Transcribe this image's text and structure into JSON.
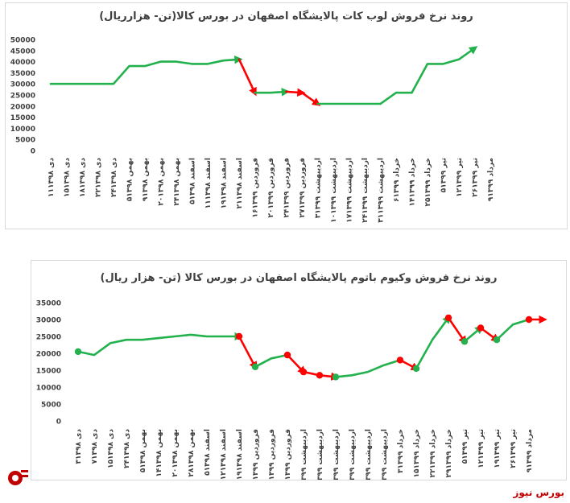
{
  "source_label": "بورس نیوز",
  "colors": {
    "up": "#22b14c",
    "down": "#ff0000",
    "axis_text": "#404040",
    "logo": "#c00000"
  },
  "chart_data": [
    {
      "type": "line",
      "title": "روند نرخ فروش لوب کات پالایشگاه اصفهان در بورس کالا(تن- هزارریال)",
      "ylim": [
        0,
        50000
      ],
      "yticks": [
        0,
        5000,
        10000,
        15000,
        20000,
        25000,
        30000,
        35000,
        40000,
        45000,
        50000
      ],
      "yticklabels": [
        "0",
        "5000",
        "10000",
        "15000",
        "20000",
        "25000",
        "30000",
        "35000",
        "40000",
        "45000",
        "50000"
      ],
      "grid": false,
      "categories": [
        "۱۱دی ۱۳۹۸",
        "۱۵دی ۱۳۹۸",
        "۱۸دی ۱۳۹۸",
        "۲۲دی ۱۳۹۸",
        "۲۴دی ۱۳۹۸",
        "۵بهمن ۱۳۹۸",
        "۹بهمن ۱۳۹۸",
        "۲۰بهمن ۱۳۹۸",
        "۲۴بهمن ۱۳۹۸",
        "۵اسفند ۱۳۹۸",
        "۱۱اسفند ۱۳۹۸",
        "۱۹اسفند ۱۳۹۸",
        "۲۱اسفند ۱۳۹۸",
        "۱۶فروردین ۱۳۹۹",
        "۲۰فروردین ۱۳۹۹",
        "۲۴فروردین ۱۳۹۹",
        "۲۷فروردین ۱۳۹۹",
        "۳اردیبهشت ۱۳۹۹",
        "۱۰اردیبهشت ۱۳۹۹",
        "۱۷اردیبهشت ۱۳۹۹",
        "۲۴اردیبهشت ۱۳۹۹",
        "۳۱اردیبهشت ۱۳۹۹",
        "۶خرداد ۱۳۹۹",
        "۱۴خرداد ۱۳۹۹",
        "۲۵خرداد ۱۳۹۹",
        "۵تیر ۱۳۹۹",
        "۱۲تیر ۱۳۹۹",
        "۲۶تیر ۱۳۹۹",
        "۹مرداد ۱۳۹۹"
      ],
      "values": [
        30000,
        30000,
        30000,
        30000,
        30000,
        38000,
        38000,
        40000,
        40000,
        39000,
        39000,
        40500,
        41000,
        26000,
        26000,
        26500,
        26000,
        21000,
        21000,
        21000,
        21000,
        21000,
        26000,
        26000,
        39000,
        39000,
        41000,
        46000,
        46000
      ],
      "segments": [
        {
          "from": 0,
          "to": 12,
          "trend": "up",
          "arrow": true
        },
        {
          "from": 12,
          "to": 13,
          "trend": "down",
          "arrow": true
        },
        {
          "from": 13,
          "to": 15,
          "trend": "up",
          "arrow": true
        },
        {
          "from": 15,
          "to": 16,
          "trend": "down",
          "arrow": true
        },
        {
          "from": 16,
          "to": 17,
          "trend": "down",
          "arrow": true
        },
        {
          "from": 17,
          "to": 21,
          "trend": "up",
          "arrow": false
        },
        {
          "from": 21,
          "to": 27,
          "trend": "up",
          "arrow": true
        }
      ],
      "markers": []
    },
    {
      "type": "line",
      "title": "روند نرخ فروش وکیوم باتوم پالایشگاه اصفهان در بورس کالا (تن- هزار ریال)",
      "ylim": [
        0,
        35000
      ],
      "yticks": [
        0,
        5000,
        10000,
        15000,
        20000,
        25000,
        30000,
        35000
      ],
      "yticklabels": [
        "0",
        "5000",
        "10000",
        "15000",
        "20000",
        "25000",
        "30000",
        "35000"
      ],
      "grid": false,
      "categories": [
        "۳دی ۱۳۹۸",
        "۷دی ۱۳۹۸",
        "۱۵دی ۱۳۹۸",
        "۲۴دی ۱۳۹۸",
        "۵بهمن ۱۳۹۸",
        "۱۴بهمن ۱۳۹۸",
        "۲۰بهمن ۱۳۹۸",
        "۲۸بهمن ۱۳۹۸",
        "۵اسفند ۱۳۹۸",
        "۱۲اسفند ۱۳۹۸",
        "۱۹اسفند ۱۳۹۸",
        "۱۰فروردین ۱۳۹۹",
        "۱۸فروردین ۱۳۹۹",
        "۲۵فروردین ۱۳۹۹",
        "۳اردیبهشت ۱۳۹۹",
        "۷اردیبهشت ۱۳۹۹",
        "۱۰اردیبهشت ۱۳۹۹",
        "۱۷اردیبهشت ۱۳۹۹",
        "۲۴اردیبهشت ۱۳۹۹",
        "۳۱اردیبهشت ۱۳۹۹",
        "۳خرداد ۱۳۹۹",
        "۱۵خرداد ۱۳۹۹",
        "۲۲خرداد ۱۳۹۹",
        "۲۹خرداد ۱۳۹۹",
        "۵تیر ۱۳۹۹",
        "۱۲تیر ۱۳۹۹",
        "۱۹تیر ۱۳۹۹",
        "۲۶تیر ۱۳۹۹",
        "۹مرداد ۱۳۹۹"
      ],
      "values": [
        20500,
        19500,
        23000,
        24000,
        24000,
        24500,
        25000,
        25500,
        25000,
        25000,
        25000,
        16000,
        18500,
        19500,
        14500,
        13500,
        13000,
        13500,
        14500,
        16500,
        18000,
        15500,
        24000,
        30500,
        23500,
        27500,
        24000,
        28500,
        30000
      ],
      "segments": [
        {
          "from": 0,
          "to": 10,
          "trend": "up",
          "arrow": true
        },
        {
          "from": 10,
          "to": 11,
          "trend": "down",
          "arrow": true
        },
        {
          "from": 11,
          "to": 13,
          "trend": "up",
          "arrow": false
        },
        {
          "from": 13,
          "to": 14,
          "trend": "down",
          "arrow": true
        },
        {
          "from": 14,
          "to": 16,
          "trend": "down",
          "arrow": true
        },
        {
          "from": 16,
          "to": 20,
          "trend": "up",
          "arrow": false
        },
        {
          "from": 20,
          "to": 21,
          "trend": "down",
          "arrow": true
        },
        {
          "from": 21,
          "to": 23,
          "trend": "up",
          "arrow": true
        },
        {
          "from": 23,
          "to": 24,
          "trend": "down",
          "arrow": true
        },
        {
          "from": 24,
          "to": 25,
          "trend": "up",
          "arrow": true
        },
        {
          "from": 25,
          "to": 26,
          "trend": "down",
          "arrow": true
        },
        {
          "from": 26,
          "to": 28,
          "trend": "up",
          "arrow": false
        },
        {
          "from": 28,
          "to": 28.9,
          "trend": "down",
          "arrow": true
        }
      ],
      "markers": [
        {
          "i": 0,
          "trend": "up"
        },
        {
          "i": 10,
          "trend": "down"
        },
        {
          "i": 11,
          "trend": "up"
        },
        {
          "i": 13,
          "trend": "down"
        },
        {
          "i": 14,
          "trend": "down"
        },
        {
          "i": 15,
          "trend": "down"
        },
        {
          "i": 16,
          "trend": "up"
        },
        {
          "i": 20,
          "trend": "down"
        },
        {
          "i": 21,
          "trend": "up"
        },
        {
          "i": 23,
          "trend": "down"
        },
        {
          "i": 24,
          "trend": "up"
        },
        {
          "i": 25,
          "trend": "down"
        },
        {
          "i": 26,
          "trend": "up"
        },
        {
          "i": 28,
          "trend": "down"
        }
      ]
    }
  ]
}
